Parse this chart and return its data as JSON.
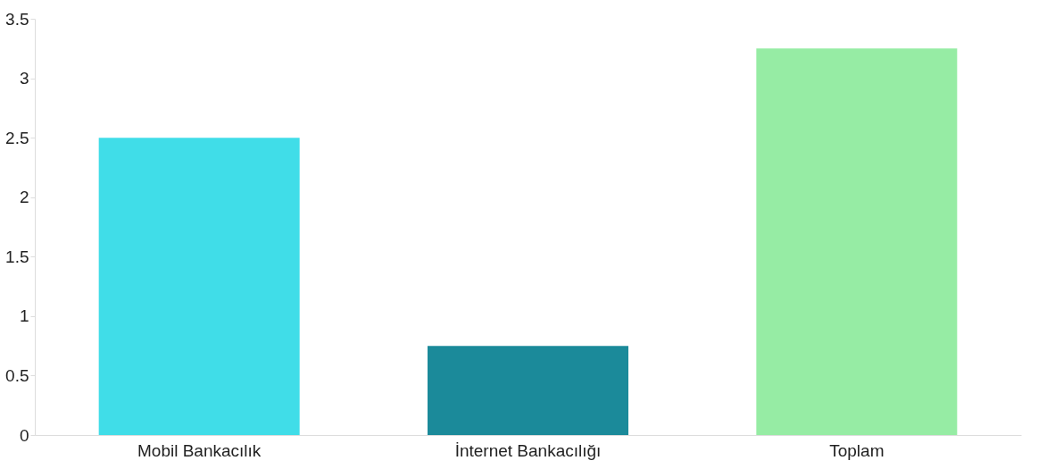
{
  "chart_data": {
    "type": "bar",
    "categories": [
      "Mobil Bankacılık",
      "İnternet Bankacılığı",
      "Toplam"
    ],
    "values": [
      2.5,
      0.75,
      3.25
    ],
    "colors": [
      "#40dde8",
      "#1b8a9a",
      "#96eca4"
    ],
    "ylim": [
      0,
      3.5
    ],
    "yticks": [
      0,
      0.5,
      1,
      1.5,
      2,
      2.5,
      3,
      3.5
    ],
    "grid": false
  }
}
